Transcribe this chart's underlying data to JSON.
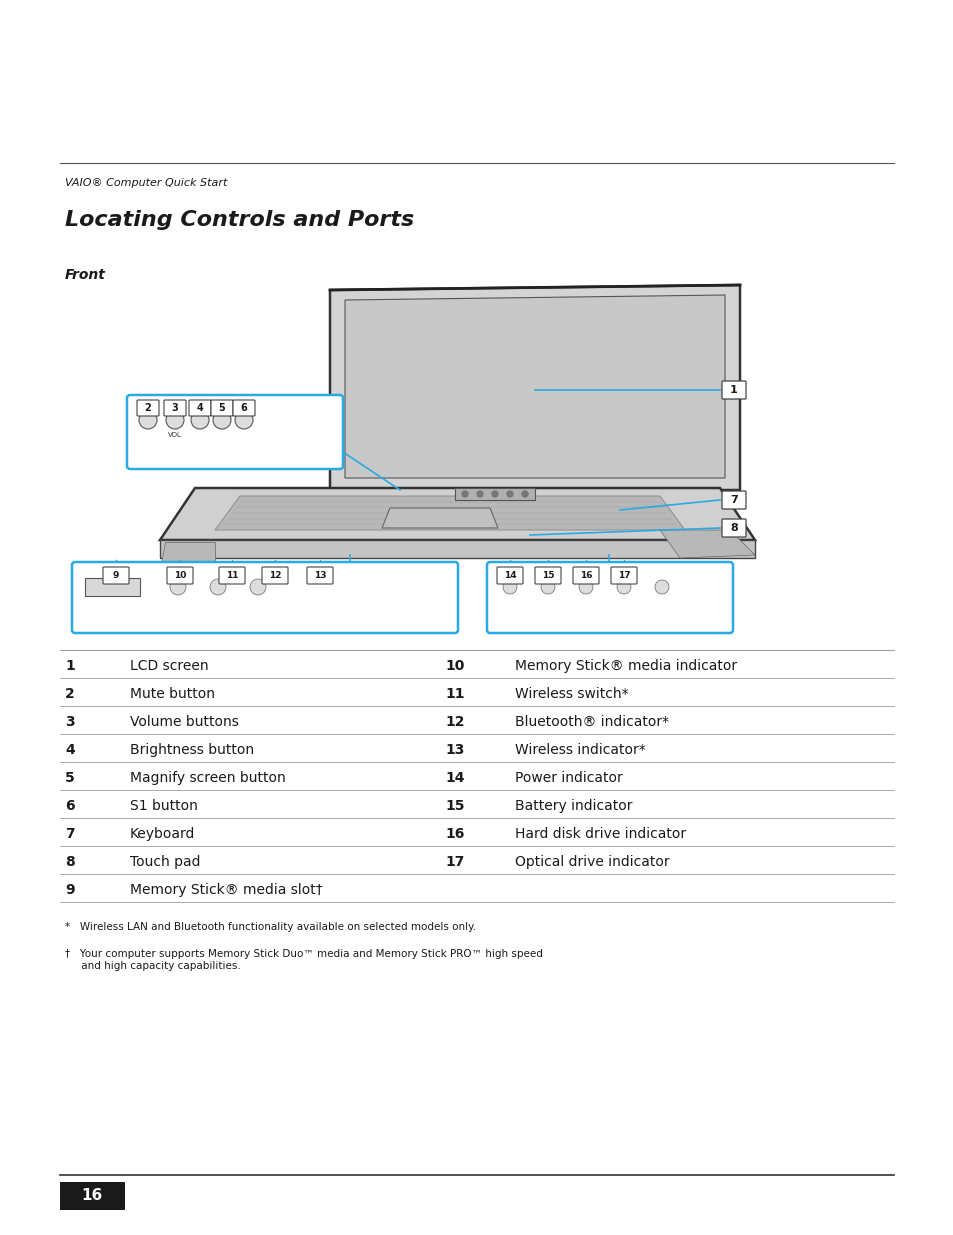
{
  "page_bg": "#ffffff",
  "header_text": "VAIO® Computer Quick Start",
  "title_text": "Locating Controls and Ports",
  "front_label": "Front",
  "cyan_color": "#29ABE2",
  "dark_color": "#1a1a1a",
  "table_rows": [
    [
      "1",
      "LCD screen",
      "10",
      "Memory Stick® media indicator"
    ],
    [
      "2",
      "Mute button",
      "11",
      "Wireless switch*"
    ],
    [
      "3",
      "Volume buttons",
      "12",
      "Bluetooth® indicator*"
    ],
    [
      "4",
      "Brightness button",
      "13",
      "Wireless indicator*"
    ],
    [
      "5",
      "Magnify screen button",
      "14",
      "Power indicator"
    ],
    [
      "6",
      "S1 button",
      "15",
      "Battery indicator"
    ],
    [
      "7",
      "Keyboard",
      "16",
      "Hard disk drive indicator"
    ],
    [
      "8",
      "Touch pad",
      "17",
      "Optical drive indicator"
    ],
    [
      "9",
      "Memory Stick® media slot†",
      "",
      ""
    ]
  ],
  "footnote1_text": "*   Wireless LAN and Bluetooth functionality available on selected models only.",
  "footnote2_text": "†   Your computer supports Memory Stick Duo™ media and Memory Stick PRO™ high speed\n     and high capacity capabilities.",
  "page_num": "16"
}
